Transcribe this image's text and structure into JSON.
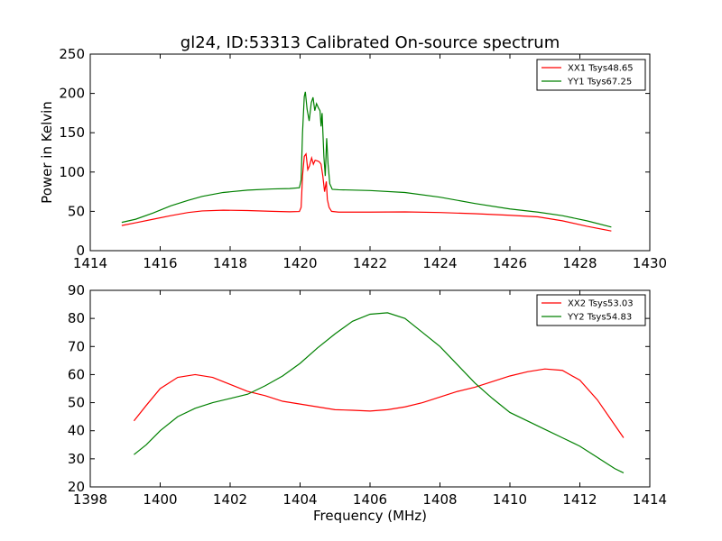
{
  "figure": {
    "title": "gl24, ID:53313 Calibrated On-source spectrum"
  },
  "colors": {
    "xx": "#ff0000",
    "yy": "#008000"
  },
  "chart_data": [
    {
      "type": "line",
      "title": "gl24, ID:53313 Calibrated On-source spectrum",
      "xlabel": "",
      "ylabel": "Power in Kelvin",
      "xlim": [
        1414,
        1430
      ],
      "ylim": [
        0,
        250
      ],
      "xticks": [
        "1414",
        "1416",
        "1418",
        "1420",
        "1422",
        "1424",
        "1426",
        "1428",
        "1430"
      ],
      "yticks": [
        "0",
        "50",
        "100",
        "150",
        "200",
        "250"
      ],
      "grid": false,
      "legend_position": "top-right",
      "series": [
        {
          "name": "XX1 Tsys48.65",
          "color": "#ff0000",
          "points": [
            [
              1414.9,
              32
            ],
            [
              1415.3,
              35.5
            ],
            [
              1415.8,
              40
            ],
            [
              1416.3,
              44.5
            ],
            [
              1416.8,
              48.5
            ],
            [
              1417.2,
              50.5
            ],
            [
              1417.8,
              51.5
            ],
            [
              1418.5,
              51
            ],
            [
              1419.2,
              50
            ],
            [
              1419.7,
              49.5
            ],
            [
              1419.98,
              49.8
            ],
            [
              1420.03,
              55
            ],
            [
              1420.07,
              95
            ],
            [
              1420.12,
              120
            ],
            [
              1420.17,
              123
            ],
            [
              1420.22,
              103
            ],
            [
              1420.27,
              108
            ],
            [
              1420.33,
              118
            ],
            [
              1420.38,
              110
            ],
            [
              1420.43,
              115
            ],
            [
              1420.5,
              114
            ],
            [
              1420.55,
              113
            ],
            [
              1420.6,
              110
            ],
            [
              1420.65,
              95
            ],
            [
              1420.7,
              75
            ],
            [
              1420.75,
              88
            ],
            [
              1420.78,
              65
            ],
            [
              1420.83,
              55
            ],
            [
              1420.9,
              50
            ],
            [
              1421.1,
              49
            ],
            [
              1422,
              49
            ],
            [
              1423,
              49.3
            ],
            [
              1424,
              48.5
            ],
            [
              1425,
              47
            ],
            [
              1426,
              45
            ],
            [
              1426.8,
              43
            ],
            [
              1427.5,
              38
            ],
            [
              1428.2,
              31
            ],
            [
              1428.9,
              25
            ]
          ]
        },
        {
          "name": "YY1 Tsys67.25",
          "color": "#008000",
          "points": [
            [
              1414.9,
              36
            ],
            [
              1415.3,
              40
            ],
            [
              1415.8,
              48
            ],
            [
              1416.3,
              57
            ],
            [
              1416.8,
              64
            ],
            [
              1417.2,
              69
            ],
            [
              1417.8,
              74
            ],
            [
              1418.5,
              77
            ],
            [
              1419.2,
              78.5
            ],
            [
              1419.7,
              79
            ],
            [
              1419.98,
              80
            ],
            [
              1420.03,
              90
            ],
            [
              1420.07,
              150
            ],
            [
              1420.12,
              196
            ],
            [
              1420.15,
              202
            ],
            [
              1420.2,
              180
            ],
            [
              1420.26,
              165
            ],
            [
              1420.32,
              188
            ],
            [
              1420.37,
              195
            ],
            [
              1420.42,
              178
            ],
            [
              1420.47,
              187
            ],
            [
              1420.52,
              182
            ],
            [
              1420.57,
              178
            ],
            [
              1420.6,
              158
            ],
            [
              1420.63,
              175
            ],
            [
              1420.68,
              120
            ],
            [
              1420.72,
              95
            ],
            [
              1420.76,
              143
            ],
            [
              1420.8,
              110
            ],
            [
              1420.85,
              85
            ],
            [
              1420.92,
              78
            ],
            [
              1421.1,
              77.5
            ],
            [
              1422,
              76.5
            ],
            [
              1423,
              74
            ],
            [
              1424,
              68
            ],
            [
              1425,
              60
            ],
            [
              1426,
              53
            ],
            [
              1426.8,
              49
            ],
            [
              1427.5,
              44.5
            ],
            [
              1428.2,
              38
            ],
            [
              1428.9,
              30
            ]
          ]
        }
      ]
    },
    {
      "type": "line",
      "title": "",
      "xlabel": "Frequency (MHz)",
      "ylabel": "",
      "xlim": [
        1398,
        1414
      ],
      "ylim": [
        20,
        90
      ],
      "xticks": [
        "1398",
        "1400",
        "1402",
        "1404",
        "1406",
        "1408",
        "1410",
        "1412",
        "1414"
      ],
      "yticks": [
        "20",
        "30",
        "40",
        "50",
        "60",
        "70",
        "80",
        "90"
      ],
      "grid": false,
      "legend_position": "top-right",
      "series": [
        {
          "name": "XX2 Tsys53.03",
          "color": "#ff0000",
          "points": [
            [
              1399.25,
              43.5
            ],
            [
              1399.6,
              49
            ],
            [
              1400,
              55
            ],
            [
              1400.5,
              59
            ],
            [
              1401,
              60
            ],
            [
              1401.5,
              59
            ],
            [
              1402,
              56.5
            ],
            [
              1402.5,
              54
            ],
            [
              1403,
              52.5
            ],
            [
              1403.5,
              50.5
            ],
            [
              1404,
              49.5
            ],
            [
              1404.5,
              48.5
            ],
            [
              1405,
              47.5
            ],
            [
              1405.5,
              47.3
            ],
            [
              1406,
              47
            ],
            [
              1406.5,
              47.5
            ],
            [
              1407,
              48.5
            ],
            [
              1407.5,
              50
            ],
            [
              1408,
              52
            ],
            [
              1408.5,
              54
            ],
            [
              1409,
              55.5
            ],
            [
              1409.5,
              57.5
            ],
            [
              1410,
              59.5
            ],
            [
              1410.5,
              61
            ],
            [
              1411,
              62
            ],
            [
              1411.5,
              61.5
            ],
            [
              1412,
              58
            ],
            [
              1412.5,
              51
            ],
            [
              1413,
              42
            ],
            [
              1413.25,
              37.5
            ]
          ]
        },
        {
          "name": "YY2 Tsys54.83",
          "color": "#008000",
          "points": [
            [
              1399.25,
              31.5
            ],
            [
              1399.6,
              35
            ],
            [
              1400,
              40
            ],
            [
              1400.5,
              45
            ],
            [
              1401,
              48
            ],
            [
              1401.5,
              50
            ],
            [
              1402,
              51.5
            ],
            [
              1402.5,
              53
            ],
            [
              1403,
              56
            ],
            [
              1403.5,
              59.5
            ],
            [
              1404,
              64
            ],
            [
              1404.5,
              69.5
            ],
            [
              1405,
              74.5
            ],
            [
              1405.5,
              79
            ],
            [
              1406,
              81.5
            ],
            [
              1406.5,
              82
            ],
            [
              1407,
              80
            ],
            [
              1407.5,
              75
            ],
            [
              1408,
              70
            ],
            [
              1408.5,
              63.5
            ],
            [
              1409,
              57
            ],
            [
              1409.5,
              51.5
            ],
            [
              1410,
              46.5
            ],
            [
              1410.5,
              43.5
            ],
            [
              1411,
              40.5
            ],
            [
              1411.5,
              37.5
            ],
            [
              1412,
              34.5
            ],
            [
              1412.5,
              30.5
            ],
            [
              1413,
              26.5
            ],
            [
              1413.25,
              25
            ]
          ]
        }
      ]
    }
  ]
}
